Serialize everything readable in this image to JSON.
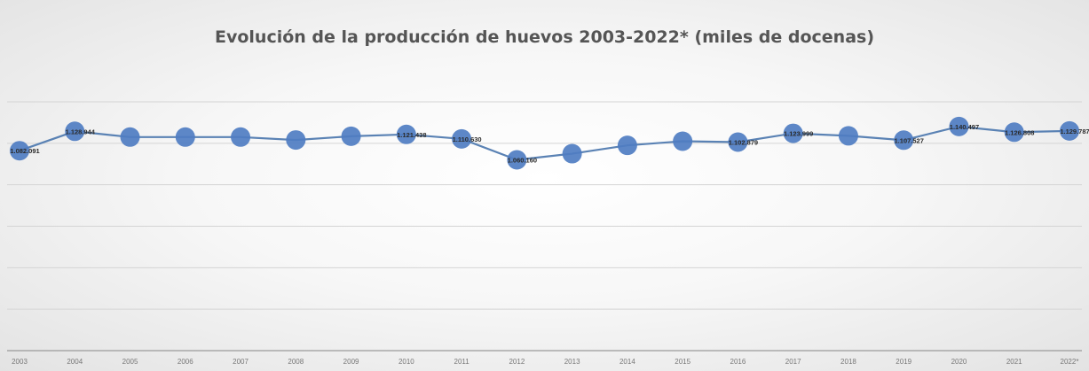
{
  "chart_data": {
    "type": "line",
    "title": "Evolución de la producción de huevos 2003-2022* (miles de docenas)",
    "xlabel": "",
    "ylabel": "",
    "categories": [
      "2003",
      "2004",
      "2005",
      "2006",
      "2007",
      "2008",
      "2009",
      "2010",
      "2011",
      "2012",
      "2013",
      "2014",
      "2015",
      "2016",
      "2017",
      "2018",
      "2019",
      "2020",
      "2021",
      "2022*"
    ],
    "series": [
      {
        "values": [
          1082091,
          1128944,
          1115000,
          1115000,
          1115000,
          1108000,
          1117000,
          1121438,
          1110630,
          1060160,
          1075000,
          1095000,
          1105000,
          1102879,
          1123999,
          1118000,
          1107527,
          1140497,
          1126808,
          1129787
        ],
        "labels": [
          "1.082.091",
          "1.128.944",
          "",
          "",
          "",
          "",
          "",
          "1.121.438",
          "1.110.630",
          "1.060.160",
          "",
          "",
          "",
          "1.102.879",
          "1.123.999",
          "",
          "1.107.527",
          "1.140.497",
          "1.126.808",
          "1.129.787"
        ]
      }
    ],
    "ylim": [
      600000,
      1200000
    ],
    "grid": true,
    "legend": "none",
    "colors": {
      "line": "#5a82b4",
      "marker": "#4f7dc2",
      "grid": "#d4d4d4",
      "axis": "#9a9a9a"
    }
  }
}
